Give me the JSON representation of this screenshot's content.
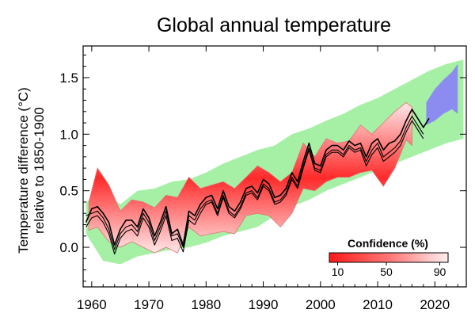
{
  "chart_data": {
    "type": "line",
    "title": "Global annual temperature",
    "ylabel_line1": "Temperature difference (°C)",
    "ylabel_line2": "relative to 1850-1900",
    "xlabel": "",
    "xlim": [
      1958.5,
      2025.5
    ],
    "ylim": [
      -0.35,
      1.78
    ],
    "xticks": [
      1960,
      1970,
      1980,
      1990,
      2000,
      2010,
      2020
    ],
    "yticks": [
      0.0,
      0.5,
      1.0,
      1.5
    ],
    "ytick_labels": [
      "0.0",
      "0.5",
      "1.0",
      "1.5"
    ],
    "colors": {
      "envelope": "#a6f0a6",
      "forecast": "#8c8cf0",
      "confidence_high": "#ff2a2a",
      "confidence_low": "#ffe6e6",
      "observed": "#000000"
    },
    "green_envelope": {
      "x": [
        1959,
        1962,
        1965,
        1968,
        1971,
        1974,
        1977,
        1980,
        1983,
        1986,
        1989,
        1992,
        1995,
        1998,
        2001,
        2004,
        2007,
        2010,
        2013,
        2016,
        2019,
        2022,
        2025
      ],
      "upper": [
        0.4,
        0.5,
        0.38,
        0.5,
        0.52,
        0.58,
        0.6,
        0.66,
        0.74,
        0.8,
        0.86,
        0.9,
        1.0,
        1.05,
        1.12,
        1.18,
        1.26,
        1.32,
        1.4,
        1.48,
        1.56,
        1.62,
        1.66
      ],
      "lower": [
        0.12,
        -0.12,
        -0.15,
        -0.08,
        -0.05,
        -0.02,
        0.0,
        0.04,
        0.1,
        0.14,
        0.18,
        0.28,
        0.36,
        0.42,
        0.5,
        0.56,
        0.62,
        0.68,
        0.74,
        0.8,
        0.86,
        0.92,
        0.96
      ]
    },
    "forecast_band": {
      "x": [
        2018.5,
        2020,
        2021.5,
        2023,
        2024
      ],
      "upper": [
        1.28,
        1.4,
        1.48,
        1.55,
        1.62
      ],
      "lower": [
        1.08,
        1.12,
        1.18,
        1.22,
        1.18
      ]
    },
    "confidence_band": {
      "x": [
        1959.5,
        1961,
        1963,
        1965,
        1967,
        1969,
        1971,
        1973,
        1975,
        1977,
        1979,
        1981,
        1983,
        1985,
        1987,
        1989,
        1991,
        1993,
        1995,
        1997,
        1999,
        2001,
        2003,
        2005,
        2007,
        2009,
        2011,
        2013,
        2015,
        2016
      ],
      "upper": [
        0.4,
        0.7,
        0.55,
        0.32,
        0.42,
        0.4,
        0.35,
        0.46,
        0.44,
        0.62,
        0.52,
        0.55,
        0.58,
        0.52,
        0.62,
        0.72,
        0.66,
        0.58,
        0.66,
        0.92,
        0.8,
        0.96,
        0.92,
        0.94,
        1.08,
        1.0,
        1.1,
        1.2,
        1.28,
        1.24
      ],
      "lower": [
        0.15,
        0.18,
        0.05,
        0.0,
        0.05,
        0.0,
        -0.05,
        0.0,
        -0.05,
        0.18,
        0.1,
        0.12,
        0.14,
        0.12,
        0.28,
        0.3,
        0.28,
        0.18,
        0.3,
        0.52,
        0.5,
        0.58,
        0.62,
        0.62,
        0.66,
        0.68,
        0.54,
        0.7,
        0.95,
        0.9
      ]
    },
    "confidence_legend": {
      "title": "Confidence (%)",
      "tick_labels": [
        "10",
        "50",
        "90"
      ]
    },
    "series": [
      {
        "x": [
          1959,
          1960,
          1961,
          1962,
          1963,
          1964,
          1965,
          1966,
          1967,
          1968,
          1969,
          1970,
          1971,
          1972,
          1973,
          1974,
          1975,
          1976,
          1977,
          1978,
          1979,
          1980,
          1981,
          1982,
          1983,
          1984,
          1985,
          1986,
          1987,
          1988,
          1989,
          1990,
          1991,
          1992,
          1993,
          1994,
          1995,
          1996,
          1997,
          1998,
          1999,
          2000,
          2001,
          2002,
          2003,
          2004,
          2005,
          2006,
          2007,
          2008,
          2009,
          2010,
          2011,
          2012,
          2013,
          2014,
          2015,
          2016,
          2017,
          2018,
          2019
        ],
        "values": [
          0.22,
          0.34,
          0.36,
          0.3,
          0.22,
          0.02,
          0.16,
          0.24,
          0.24,
          0.18,
          0.34,
          0.26,
          0.1,
          0.22,
          0.36,
          0.12,
          0.16,
          0.02,
          0.32,
          0.28,
          0.38,
          0.44,
          0.46,
          0.34,
          0.5,
          0.36,
          0.32,
          0.4,
          0.52,
          0.54,
          0.48,
          0.6,
          0.56,
          0.44,
          0.46,
          0.52,
          0.66,
          0.58,
          0.76,
          0.92,
          0.74,
          0.72,
          0.86,
          0.9,
          0.9,
          0.86,
          0.94,
          0.9,
          0.92,
          0.8,
          0.92,
          0.96,
          0.86,
          0.92,
          0.94,
          1.0,
          1.12,
          1.22,
          1.14,
          1.06,
          1.14
        ]
      },
      {
        "x": [
          1959,
          1960,
          1961,
          1962,
          1963,
          1964,
          1965,
          1966,
          1967,
          1968,
          1969,
          1970,
          1971,
          1972,
          1973,
          1974,
          1975,
          1976,
          1977,
          1978,
          1979,
          1980,
          1981,
          1982,
          1983,
          1984,
          1985,
          1986,
          1987,
          1988,
          1989,
          1990,
          1991,
          1992,
          1993,
          1994,
          1995,
          1996,
          1997,
          1998,
          1999,
          2000,
          2001,
          2002,
          2003,
          2004,
          2005,
          2006,
          2007,
          2008,
          2009,
          2010,
          2011,
          2012,
          2013,
          2014,
          2015,
          2016,
          2017,
          2018
        ],
        "values": [
          0.28,
          0.3,
          0.32,
          0.26,
          0.16,
          -0.02,
          0.12,
          0.18,
          0.2,
          0.14,
          0.3,
          0.22,
          0.06,
          0.18,
          0.32,
          0.1,
          0.12,
          0.0,
          0.28,
          0.24,
          0.34,
          0.4,
          0.42,
          0.3,
          0.46,
          0.32,
          0.28,
          0.36,
          0.48,
          0.5,
          0.44,
          0.56,
          0.52,
          0.4,
          0.42,
          0.48,
          0.62,
          0.54,
          0.72,
          0.88,
          0.7,
          0.68,
          0.82,
          0.86,
          0.86,
          0.82,
          0.9,
          0.86,
          0.88,
          0.76,
          0.86,
          0.92,
          0.8,
          0.84,
          0.88,
          0.94,
          1.06,
          1.16,
          1.08,
          1.0
        ]
      },
      {
        "x": [
          1959,
          1960,
          1961,
          1962,
          1963,
          1964,
          1965,
          1966,
          1967,
          1968,
          1969,
          1970,
          1971,
          1972,
          1973,
          1974,
          1975,
          1976,
          1977,
          1978,
          1979,
          1980,
          1981,
          1982,
          1983,
          1984,
          1985,
          1986,
          1987,
          1988,
          1989,
          1990,
          1991,
          1992,
          1993,
          1994,
          1995,
          1996,
          1997,
          1998,
          1999,
          2000,
          2001,
          2002,
          2003,
          2004,
          2005,
          2006,
          2007,
          2008,
          2009,
          2010,
          2011,
          2012,
          2013,
          2014,
          2015,
          2016,
          2017,
          2018
        ],
        "values": [
          0.18,
          0.26,
          0.28,
          0.22,
          0.12,
          -0.06,
          0.08,
          0.14,
          0.16,
          0.1,
          0.26,
          0.18,
          0.02,
          0.14,
          0.28,
          0.06,
          0.08,
          -0.04,
          0.24,
          0.2,
          0.3,
          0.38,
          0.4,
          0.28,
          0.44,
          0.3,
          0.26,
          0.34,
          0.46,
          0.48,
          0.42,
          0.54,
          0.5,
          0.38,
          0.4,
          0.46,
          0.6,
          0.52,
          0.7,
          0.86,
          0.68,
          0.66,
          0.8,
          0.84,
          0.84,
          0.8,
          0.88,
          0.84,
          0.86,
          0.72,
          0.82,
          0.88,
          0.76,
          0.8,
          0.84,
          0.9,
          1.02,
          1.12,
          1.04,
          0.96
        ]
      }
    ]
  }
}
